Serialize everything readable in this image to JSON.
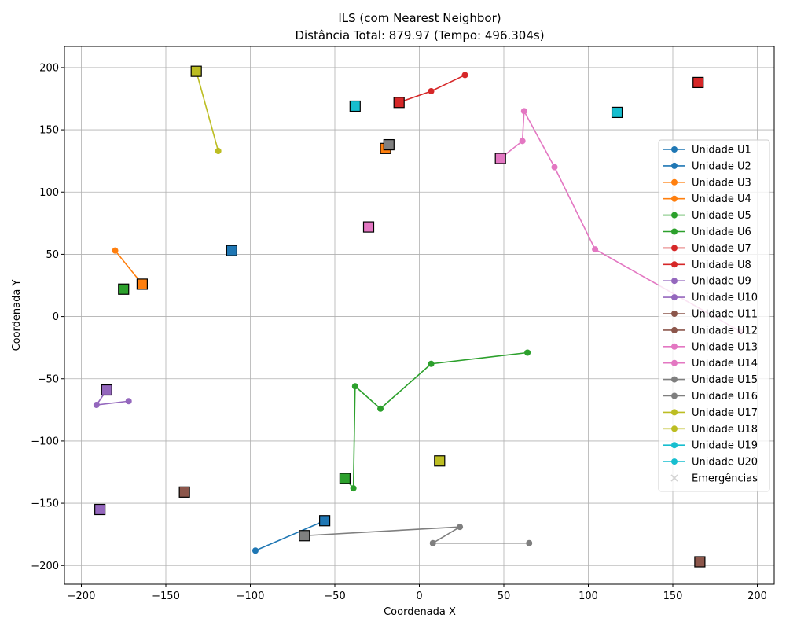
{
  "chart_data": {
    "type": "scatter",
    "title": "ILS (com Nearest Neighbor)",
    "subtitle": "Distância Total: 879.97 (Tempo: 496.304s)",
    "xlabel": "Coordenada X",
    "ylabel": "Coordenada Y",
    "xlim": [
      -210,
      210
    ],
    "ylim": [
      -215,
      217
    ],
    "xticks": [
      -200,
      -150,
      -100,
      -50,
      0,
      50,
      100,
      150,
      200
    ],
    "yticks": [
      -200,
      -150,
      -100,
      -50,
      0,
      50,
      100,
      150,
      200
    ],
    "grid": true,
    "legend_position": "right",
    "routes": [
      {
        "name": "Unidade U1",
        "color": "#1f77b4",
        "points": [
          [
            -56,
            -164
          ],
          [
            -97,
            -188
          ]
        ]
      },
      {
        "name": "Unidade U2",
        "color": "#1f77b4",
        "points": []
      },
      {
        "name": "Unidade U3",
        "color": "#ff7f0e",
        "points": [
          [
            -164,
            26
          ],
          [
            -180,
            53
          ]
        ]
      },
      {
        "name": "Unidade U4",
        "color": "#ff7f0e",
        "points": []
      },
      {
        "name": "Unidade U5",
        "color": "#2ca02c",
        "points": [
          [
            -44,
            -130
          ],
          [
            -39,
            -138
          ],
          [
            -38,
            -56
          ],
          [
            -23,
            -74
          ],
          [
            7,
            -38
          ],
          [
            64,
            -29
          ]
        ]
      },
      {
        "name": "Unidade U6",
        "color": "#2ca02c",
        "points": []
      },
      {
        "name": "Unidade U7",
        "color": "#d62728",
        "points": [
          [
            -12,
            172
          ],
          [
            7,
            181
          ],
          [
            27,
            194
          ]
        ]
      },
      {
        "name": "Unidade U8",
        "color": "#d62728",
        "points": []
      },
      {
        "name": "Unidade U9",
        "color": "#9467bd",
        "points": [
          [
            -185,
            -59
          ],
          [
            -191,
            -71
          ],
          [
            -172,
            -68
          ]
        ]
      },
      {
        "name": "Unidade U10",
        "color": "#9467bd",
        "points": []
      },
      {
        "name": "Unidade U11",
        "color": "#8c564b",
        "points": []
      },
      {
        "name": "Unidade U12",
        "color": "#8c564b",
        "points": []
      },
      {
        "name": "Unidade U13",
        "color": "#e377c2",
        "points": [
          [
            48,
            127
          ],
          [
            61,
            141
          ],
          [
            62,
            165
          ],
          [
            80,
            120
          ],
          [
            104,
            54
          ],
          [
            190,
            -12
          ]
        ]
      },
      {
        "name": "Unidade U14",
        "color": "#e377c2",
        "points": []
      },
      {
        "name": "Unidade U15",
        "color": "#7f7f7f",
        "points": [
          [
            -68,
            -176
          ],
          [
            24,
            -169
          ],
          [
            8,
            -182
          ],
          [
            65,
            -182
          ]
        ]
      },
      {
        "name": "Unidade U16",
        "color": "#7f7f7f",
        "points": []
      },
      {
        "name": "Unidade U17",
        "color": "#bcbd22",
        "points": [
          [
            -132,
            197
          ],
          [
            -119,
            133
          ]
        ]
      },
      {
        "name": "Unidade U18",
        "color": "#bcbd22",
        "points": []
      },
      {
        "name": "Unidade U19",
        "color": "#17becf",
        "points": []
      },
      {
        "name": "Unidade U20",
        "color": "#17becf",
        "points": []
      }
    ],
    "bases": [
      {
        "unit": "U1",
        "color": "#1f77b4",
        "x": -56,
        "y": -164
      },
      {
        "unit": "U2",
        "color": "#1f77b4",
        "x": -111,
        "y": 53
      },
      {
        "unit": "U3",
        "color": "#ff7f0e",
        "x": -164,
        "y": 26
      },
      {
        "unit": "U4",
        "color": "#ff7f0e",
        "x": -20,
        "y": 135
      },
      {
        "unit": "U5",
        "color": "#2ca02c",
        "x": -44,
        "y": -130
      },
      {
        "unit": "U6",
        "color": "#2ca02c",
        "x": -175,
        "y": 22
      },
      {
        "unit": "U7",
        "color": "#d62728",
        "x": -12,
        "y": 172
      },
      {
        "unit": "U8",
        "color": "#d62728",
        "x": 165,
        "y": 188
      },
      {
        "unit": "U9",
        "color": "#9467bd",
        "x": -185,
        "y": -59
      },
      {
        "unit": "U10",
        "color": "#9467bd",
        "x": -189,
        "y": -155
      },
      {
        "unit": "U11",
        "color": "#8c564b",
        "x": -139,
        "y": -141
      },
      {
        "unit": "U12",
        "color": "#8c564b",
        "x": 166,
        "y": -197
      },
      {
        "unit": "U13",
        "color": "#e377c2",
        "x": 48,
        "y": 127
      },
      {
        "unit": "U14",
        "color": "#e377c2",
        "x": -30,
        "y": 72
      },
      {
        "unit": "U15",
        "color": "#7f7f7f",
        "x": -68,
        "y": -176
      },
      {
        "unit": "U16",
        "color": "#7f7f7f",
        "x": -18,
        "y": 138
      },
      {
        "unit": "U17",
        "color": "#bcbd22",
        "x": -132,
        "y": 197
      },
      {
        "unit": "U18",
        "color": "#bcbd22",
        "x": 12,
        "y": -116
      },
      {
        "unit": "U19",
        "color": "#17becf",
        "x": -38,
        "y": 169
      },
      {
        "unit": "U20",
        "color": "#17becf",
        "x": 117,
        "y": 164
      }
    ],
    "legend": [
      {
        "label": "Unidade U1",
        "color": "#1f77b4",
        "kind": "line"
      },
      {
        "label": "Unidade U2",
        "color": "#1f77b4",
        "kind": "line"
      },
      {
        "label": "Unidade U3",
        "color": "#ff7f0e",
        "kind": "line"
      },
      {
        "label": "Unidade U4",
        "color": "#ff7f0e",
        "kind": "line"
      },
      {
        "label": "Unidade U5",
        "color": "#2ca02c",
        "kind": "line"
      },
      {
        "label": "Unidade U6",
        "color": "#2ca02c",
        "kind": "line"
      },
      {
        "label": "Unidade U7",
        "color": "#d62728",
        "kind": "line"
      },
      {
        "label": "Unidade U8",
        "color": "#d62728",
        "kind": "line"
      },
      {
        "label": "Unidade U9",
        "color": "#9467bd",
        "kind": "line"
      },
      {
        "label": "Unidade U10",
        "color": "#9467bd",
        "kind": "line"
      },
      {
        "label": "Unidade U11",
        "color": "#8c564b",
        "kind": "line"
      },
      {
        "label": "Unidade U12",
        "color": "#8c564b",
        "kind": "line"
      },
      {
        "label": "Unidade U13",
        "color": "#e377c2",
        "kind": "line"
      },
      {
        "label": "Unidade U14",
        "color": "#e377c2",
        "kind": "line"
      },
      {
        "label": "Unidade U15",
        "color": "#7f7f7f",
        "kind": "line"
      },
      {
        "label": "Unidade U16",
        "color": "#7f7f7f",
        "kind": "line"
      },
      {
        "label": "Unidade U17",
        "color": "#bcbd22",
        "kind": "line"
      },
      {
        "label": "Unidade U18",
        "color": "#bcbd22",
        "kind": "line"
      },
      {
        "label": "Unidade U19",
        "color": "#17becf",
        "kind": "line"
      },
      {
        "label": "Unidade U20",
        "color": "#17becf",
        "kind": "line"
      },
      {
        "label": "Emergências",
        "color": "#d3d3d3",
        "kind": "x"
      }
    ]
  }
}
